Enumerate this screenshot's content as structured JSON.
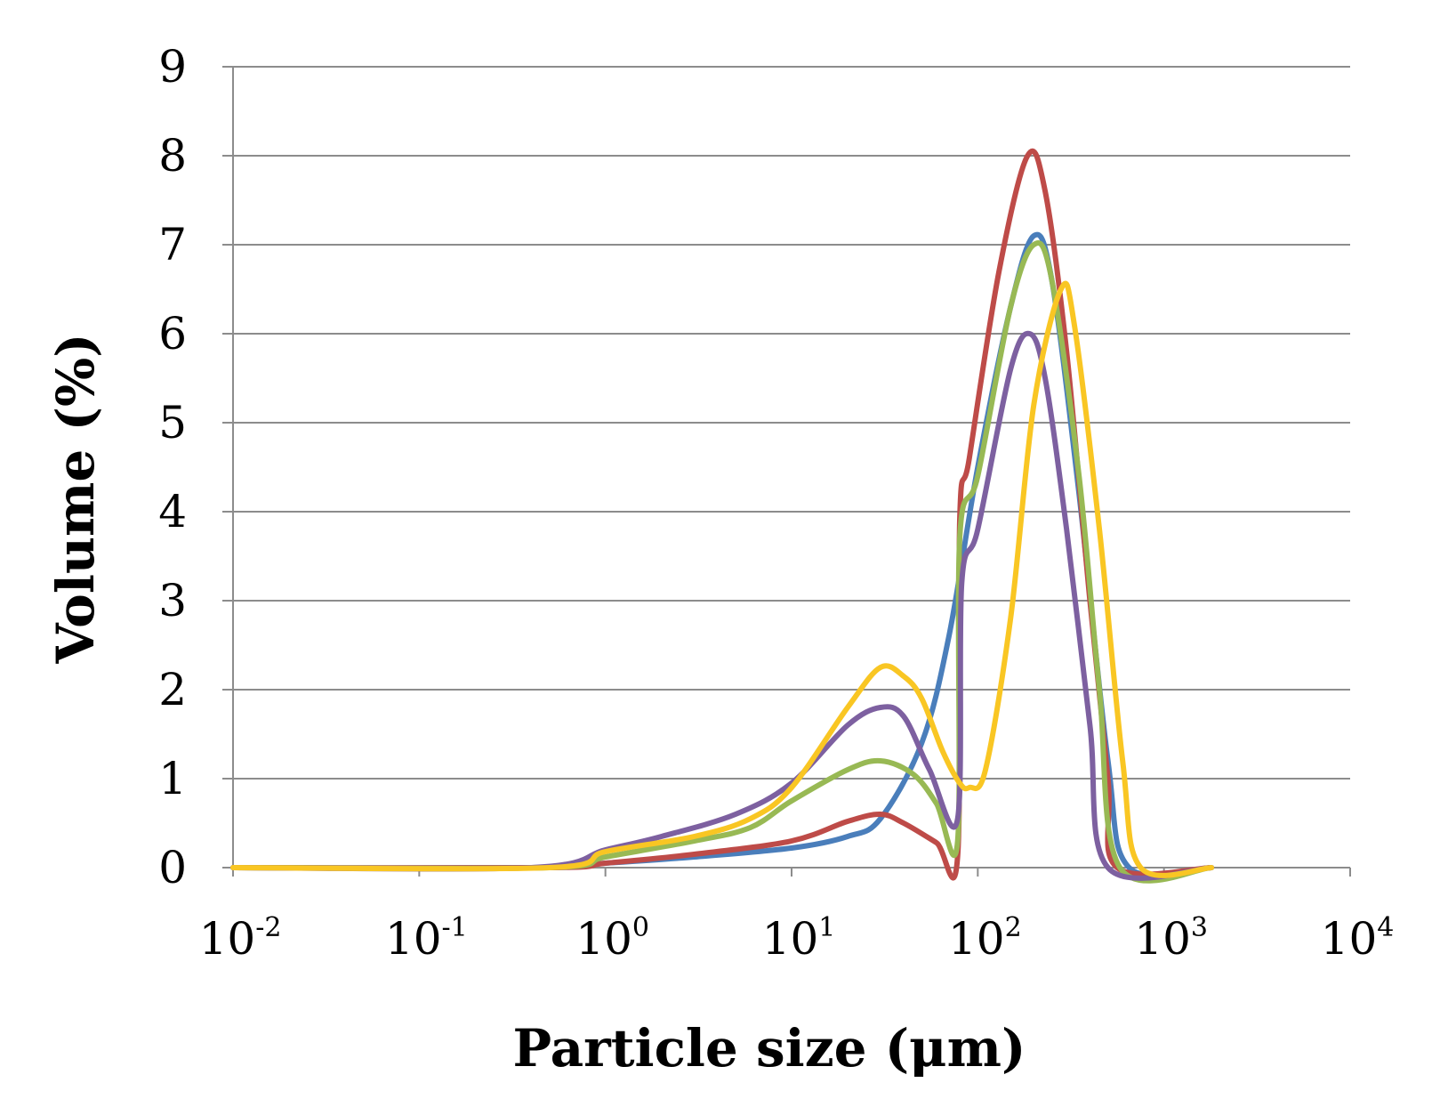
{
  "chart_data": {
    "type": "line",
    "xlabel": "Particle size (μm)",
    "ylabel": "Volume (%)",
    "x_scale": "log",
    "xlim": [
      0.01,
      10000
    ],
    "ylim": [
      0,
      9
    ],
    "x_ticks": [
      {
        "base": "10",
        "exp": "-2",
        "value": 0.01
      },
      {
        "base": "10",
        "exp": "-1",
        "value": 0.1
      },
      {
        "base": "10",
        "exp": "0",
        "value": 1
      },
      {
        "base": "10",
        "exp": "1",
        "value": 10
      },
      {
        "base": "10",
        "exp": "2",
        "value": 100
      },
      {
        "base": "10",
        "exp": "3",
        "value": 1000
      },
      {
        "base": "10",
        "exp": "4",
        "value": 10000
      }
    ],
    "y_ticks": [
      "0",
      "1",
      "2",
      "3",
      "4",
      "5",
      "6",
      "7",
      "8",
      "9"
    ],
    "grid": true,
    "legend": "none",
    "series": [
      {
        "color": "#4a7ebb",
        "points": [
          [
            0.01,
            0
          ],
          [
            0.4,
            0
          ],
          [
            1,
            0.05
          ],
          [
            3,
            0.12
          ],
          [
            10,
            0.22
          ],
          [
            20,
            0.35
          ],
          [
            30,
            0.55
          ],
          [
            50,
            1.4
          ],
          [
            70,
            2.6
          ],
          [
            100,
            4.5
          ],
          [
            150,
            6.3
          ],
          [
            200,
            7.1
          ],
          [
            250,
            6.6
          ],
          [
            350,
            4.2
          ],
          [
            500,
            1.2
          ],
          [
            650,
            0
          ],
          [
            1800,
            0
          ]
        ]
      },
      {
        "color": "#be4b48",
        "points": [
          [
            0.01,
            0
          ],
          [
            0.5,
            0
          ],
          [
            1,
            0.05
          ],
          [
            3,
            0.15
          ],
          [
            10,
            0.3
          ],
          [
            20,
            0.52
          ],
          [
            30,
            0.6
          ],
          [
            40,
            0.5
          ],
          [
            60,
            0.28
          ],
          [
            78,
            0.13
          ],
          [
            80,
            3.9
          ],
          [
            90,
            4.6
          ],
          [
            130,
            6.7
          ],
          [
            185,
            8.0
          ],
          [
            230,
            7.6
          ],
          [
            300,
            5.8
          ],
          [
            400,
            3.0
          ],
          [
            500,
            1.0
          ],
          [
            560,
            0
          ],
          [
            1800,
            0
          ]
        ]
      },
      {
        "color": "#98b954",
        "points": [
          [
            0.01,
            0
          ],
          [
            0.5,
            0
          ],
          [
            1,
            0.12
          ],
          [
            3,
            0.3
          ],
          [
            6,
            0.45
          ],
          [
            10,
            0.75
          ],
          [
            20,
            1.1
          ],
          [
            30,
            1.2
          ],
          [
            45,
            1.05
          ],
          [
            60,
            0.72
          ],
          [
            78,
            0.3
          ],
          [
            80,
            3.7
          ],
          [
            100,
            4.4
          ],
          [
            150,
            6.3
          ],
          [
            200,
            7.0
          ],
          [
            250,
            6.6
          ],
          [
            350,
            4.4
          ],
          [
            450,
            2.0
          ],
          [
            580,
            0
          ],
          [
            1800,
            0
          ]
        ]
      },
      {
        "color": "#7d60a0",
        "points": [
          [
            0.01,
            0
          ],
          [
            0.4,
            0
          ],
          [
            1,
            0.2
          ],
          [
            2,
            0.35
          ],
          [
            5,
            0.6
          ],
          [
            10,
            0.95
          ],
          [
            20,
            1.6
          ],
          [
            30,
            1.8
          ],
          [
            40,
            1.7
          ],
          [
            55,
            1.1
          ],
          [
            78,
            0.55
          ],
          [
            82,
            3.2
          ],
          [
            100,
            3.8
          ],
          [
            150,
            5.6
          ],
          [
            190,
            6.0
          ],
          [
            230,
            5.5
          ],
          [
            300,
            3.8
          ],
          [
            400,
            1.6
          ],
          [
            500,
            0
          ],
          [
            1800,
            0
          ]
        ]
      },
      {
        "color": "#f9c623",
        "points": [
          [
            0.01,
            0
          ],
          [
            0.5,
            0
          ],
          [
            1,
            0.18
          ],
          [
            3,
            0.35
          ],
          [
            6,
            0.55
          ],
          [
            10,
            0.9
          ],
          [
            20,
            1.8
          ],
          [
            30,
            2.25
          ],
          [
            40,
            2.15
          ],
          [
            50,
            1.9
          ],
          [
            65,
            1.3
          ],
          [
            80,
            0.95
          ],
          [
            90,
            0.9
          ],
          [
            110,
            1.1
          ],
          [
            150,
            2.8
          ],
          [
            200,
            5.2
          ],
          [
            280,
            6.5
          ],
          [
            330,
            6.1
          ],
          [
            450,
            3.8
          ],
          [
            600,
            1.2
          ],
          [
            750,
            0
          ],
          [
            1800,
            0
          ]
        ]
      }
    ]
  }
}
